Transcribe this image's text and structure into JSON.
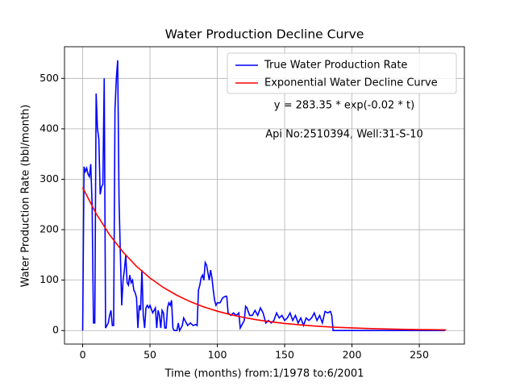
{
  "chart_data": {
    "type": "line",
    "title": "Water Production Decline Curve",
    "xlabel": "Time (months) from:1/1978 to:6/2001",
    "ylabel": "Water Production Rate (bbl/month)",
    "annotations": [
      "y = 283.35 * exp(-0.02 * t)",
      "Api No:2510394, Well:31-S-10"
    ],
    "xlim": [
      -13.5,
      283.5
    ],
    "ylim": [
      -26.8,
      562.8
    ],
    "xticks": [
      0,
      50,
      100,
      150,
      200,
      250
    ],
    "yticks": [
      0,
      100,
      200,
      300,
      400,
      500
    ],
    "grid": true,
    "legend": "upper right",
    "series": [
      {
        "name": "True Water Production Rate",
        "color": "#0000ff",
        "x": [
          0,
          1,
          2,
          3,
          4,
          5,
          6,
          7,
          8,
          9,
          10,
          11,
          12,
          13,
          14,
          15,
          16,
          17,
          18,
          19,
          20,
          21,
          22,
          23,
          24,
          25,
          26,
          27,
          28,
          29,
          30,
          31,
          32,
          33,
          34,
          35,
          36,
          37,
          38,
          39,
          40,
          41,
          42,
          43,
          44,
          45,
          46,
          47,
          48,
          49,
          50,
          52,
          54,
          55,
          56,
          57,
          58,
          59,
          60,
          61,
          62,
          63,
          64,
          65,
          66,
          67,
          68,
          70,
          71,
          72,
          73,
          74,
          75,
          76,
          78,
          80,
          82,
          84,
          85,
          86,
          87,
          88,
          89,
          90,
          91,
          92,
          93,
          94,
          95,
          96,
          97,
          98,
          99,
          100,
          102,
          104,
          106,
          107,
          108,
          110,
          112,
          114,
          116,
          117,
          118,
          120,
          121,
          122,
          124,
          126,
          128,
          130,
          132,
          134,
          136,
          138,
          140,
          142,
          144,
          146,
          148,
          150,
          152,
          154,
          156,
          158,
          160,
          162,
          164,
          166,
          168,
          170,
          172,
          174,
          176,
          178,
          180,
          182,
          184,
          185,
          186,
          200,
          230,
          269
        ],
        "values": [
          0,
          325,
          315,
          322,
          310,
          305,
          330,
          250,
          15,
          15,
          470,
          400,
          380,
          270,
          285,
          290,
          500,
          5,
          10,
          15,
          30,
          40,
          10,
          10,
          440,
          500,
          536,
          260,
          150,
          50,
          100,
          120,
          150,
          95,
          90,
          110,
          95,
          100,
          80,
          75,
          65,
          5,
          50,
          40,
          120,
          30,
          5,
          45,
          50,
          45,
          50,
          35,
          45,
          5,
          40,
          30,
          5,
          40,
          35,
          5,
          5,
          45,
          55,
          50,
          60,
          5,
          0,
          0,
          15,
          0,
          5,
          10,
          25,
          20,
          10,
          15,
          10,
          12,
          10,
          80,
          90,
          105,
          110,
          100,
          135,
          130,
          115,
          100,
          120,
          105,
          80,
          60,
          50,
          55,
          55,
          65,
          68,
          68,
          35,
          30,
          35,
          30,
          35,
          5,
          10,
          20,
          48,
          45,
          30,
          30,
          40,
          30,
          45,
          35,
          15,
          20,
          15,
          20,
          35,
          25,
          30,
          20,
          25,
          35,
          20,
          30,
          15,
          25,
          10,
          25,
          20,
          25,
          35,
          20,
          30,
          15,
          38,
          35,
          38,
          30,
          0,
          0,
          0,
          0
        ]
      },
      {
        "name": "Exponential Water Decline Curve",
        "color": "#ff0000",
        "x": [
          0,
          10,
          20,
          30,
          40,
          50,
          60,
          70,
          80,
          90,
          100,
          110,
          120,
          130,
          140,
          150,
          160,
          170,
          180,
          190,
          200,
          210,
          220,
          230,
          240,
          250,
          260,
          270
        ],
        "values": [
          283.35,
          232.0,
          189.9,
          155.5,
          127.3,
          104.2,
          85.3,
          69.9,
          57.2,
          46.8,
          38.4,
          31.4,
          25.7,
          21.0,
          17.2,
          14.1,
          11.6,
          9.5,
          7.7,
          6.3,
          5.2,
          4.3,
          3.5,
          2.9,
          2.3,
          1.9,
          1.6,
          1.3
        ]
      }
    ]
  }
}
